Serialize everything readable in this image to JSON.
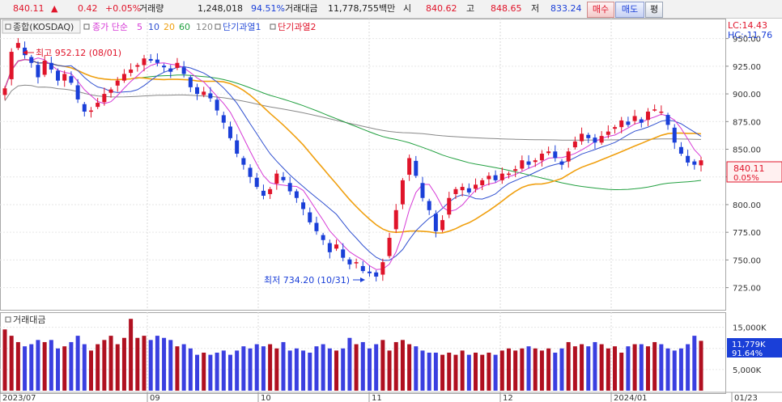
{
  "quote": {
    "price": "840.11",
    "arrow": "▲",
    "change": "0.42",
    "change_pct": "+0.05%",
    "volume_label": "거래량",
    "volume": "1,248,018",
    "volume_ratio": "94.51%",
    "amount_label": "거래대금",
    "amount": "11,778,755백만",
    "open_label": "시",
    "open": "840.62",
    "high_label": "고",
    "high": "848.65",
    "low_label": "저",
    "low": "833.24"
  },
  "buttons": {
    "buy": "매수",
    "sell": "매도",
    "eval": "평"
  },
  "legend": {
    "index_name": "종합(KOSDAQ)",
    "ma_title": "종가 단순",
    "ma5": "5",
    "ma10": "10",
    "ma20": "20",
    "ma60": "60",
    "ma120": "120",
    "overheat1": "단기과열1",
    "overheat2": "단기과열2"
  },
  "corner": {
    "lc": "LC:14.43",
    "hc": "HC:-11.76"
  },
  "annotations": {
    "high": "최고 952.12 (08/01)",
    "low": "최저 734.20 (10/31)"
  },
  "price_axis": {
    "ticks": [
      "950.00",
      "925.00",
      "900.00",
      "875.00",
      "850.00",
      "825.00",
      "800.00",
      "775.00",
      "750.00",
      "725.00"
    ],
    "last": "840.11",
    "last_pct": "0.05%"
  },
  "volume_panel": {
    "title": "거래대금",
    "ticks": [
      "15,000K",
      "10,000K",
      "5,000K"
    ],
    "last": "11,779K",
    "last_pct": "91.64%"
  },
  "x_axis": {
    "labels": [
      "2023/07",
      "09",
      "10",
      "11",
      "12",
      "2024/01",
      "01/23"
    ]
  },
  "colors": {
    "up": "#e0142a",
    "down": "#1a3fd8",
    "ma5": "#d63ad6",
    "ma10": "#3050d0",
    "ma20": "#f0a010",
    "ma60": "#22a040",
    "ma120": "#888888"
  },
  "chart_data": {
    "type": "candlestick",
    "ylim": [
      705,
      968
    ],
    "closes": [
      905,
      938,
      946,
      935,
      928,
      915,
      930,
      922,
      912,
      918,
      910,
      895,
      884,
      885,
      892,
      900,
      904,
      912,
      918,
      922,
      926,
      932,
      930,
      928,
      924,
      920,
      928,
      918,
      906,
      900,
      902,
      896,
      885,
      874,
      860,
      846,
      836,
      825,
      816,
      808,
      814,
      828,
      822,
      812,
      806,
      796,
      784,
      776,
      768,
      757,
      764,
      752,
      746,
      748,
      740,
      738,
      735,
      748,
      770,
      795,
      822,
      842,
      826,
      806,
      795,
      776,
      786,
      806,
      814,
      816,
      811,
      818,
      822,
      826,
      822,
      828,
      828,
      832,
      840,
      836,
      840,
      846,
      848,
      842,
      836,
      848,
      857,
      864,
      860,
      856,
      862,
      866,
      870,
      876,
      872,
      880,
      874,
      884,
      886,
      884,
      872,
      856,
      846,
      838,
      836,
      840
    ],
    "volumes": [
      14.5,
      13,
      11.5,
      10.5,
      11,
      12,
      11.5,
      12,
      10,
      10.5,
      11.5,
      13,
      11,
      9.5,
      11,
      12,
      13,
      11,
      12.5,
      17,
      12.5,
      13,
      12,
      13,
      12.5,
      12,
      10.5,
      11,
      10,
      8.5,
      9,
      8.5,
      9,
      9.5,
      8.5,
      9.5,
      10.5,
      10,
      11,
      10.5,
      11,
      10,
      11.5,
      9.5,
      10,
      9.5,
      9,
      10.5,
      11,
      10,
      9.5,
      10,
      12.5,
      11,
      11.5,
      10,
      11,
      12,
      9.5,
      11.5,
      12,
      11,
      10.5,
      9.5,
      9,
      9,
      8.5,
      9,
      8.5,
      9.5,
      8.5,
      9,
      8.5,
      9,
      8.5,
      9.5,
      10,
      9.5,
      10,
      10.5,
      10,
      9.5,
      10,
      9,
      10,
      11.5,
      10.5,
      11,
      10.5,
      11.5,
      11,
      10,
      10.5,
      9,
      10.5,
      11,
      11,
      10.5,
      11.5,
      11,
      10,
      9.5,
      10,
      11,
      13,
      11.8
    ],
    "vol_ylim": [
      0,
      18
    ]
  }
}
